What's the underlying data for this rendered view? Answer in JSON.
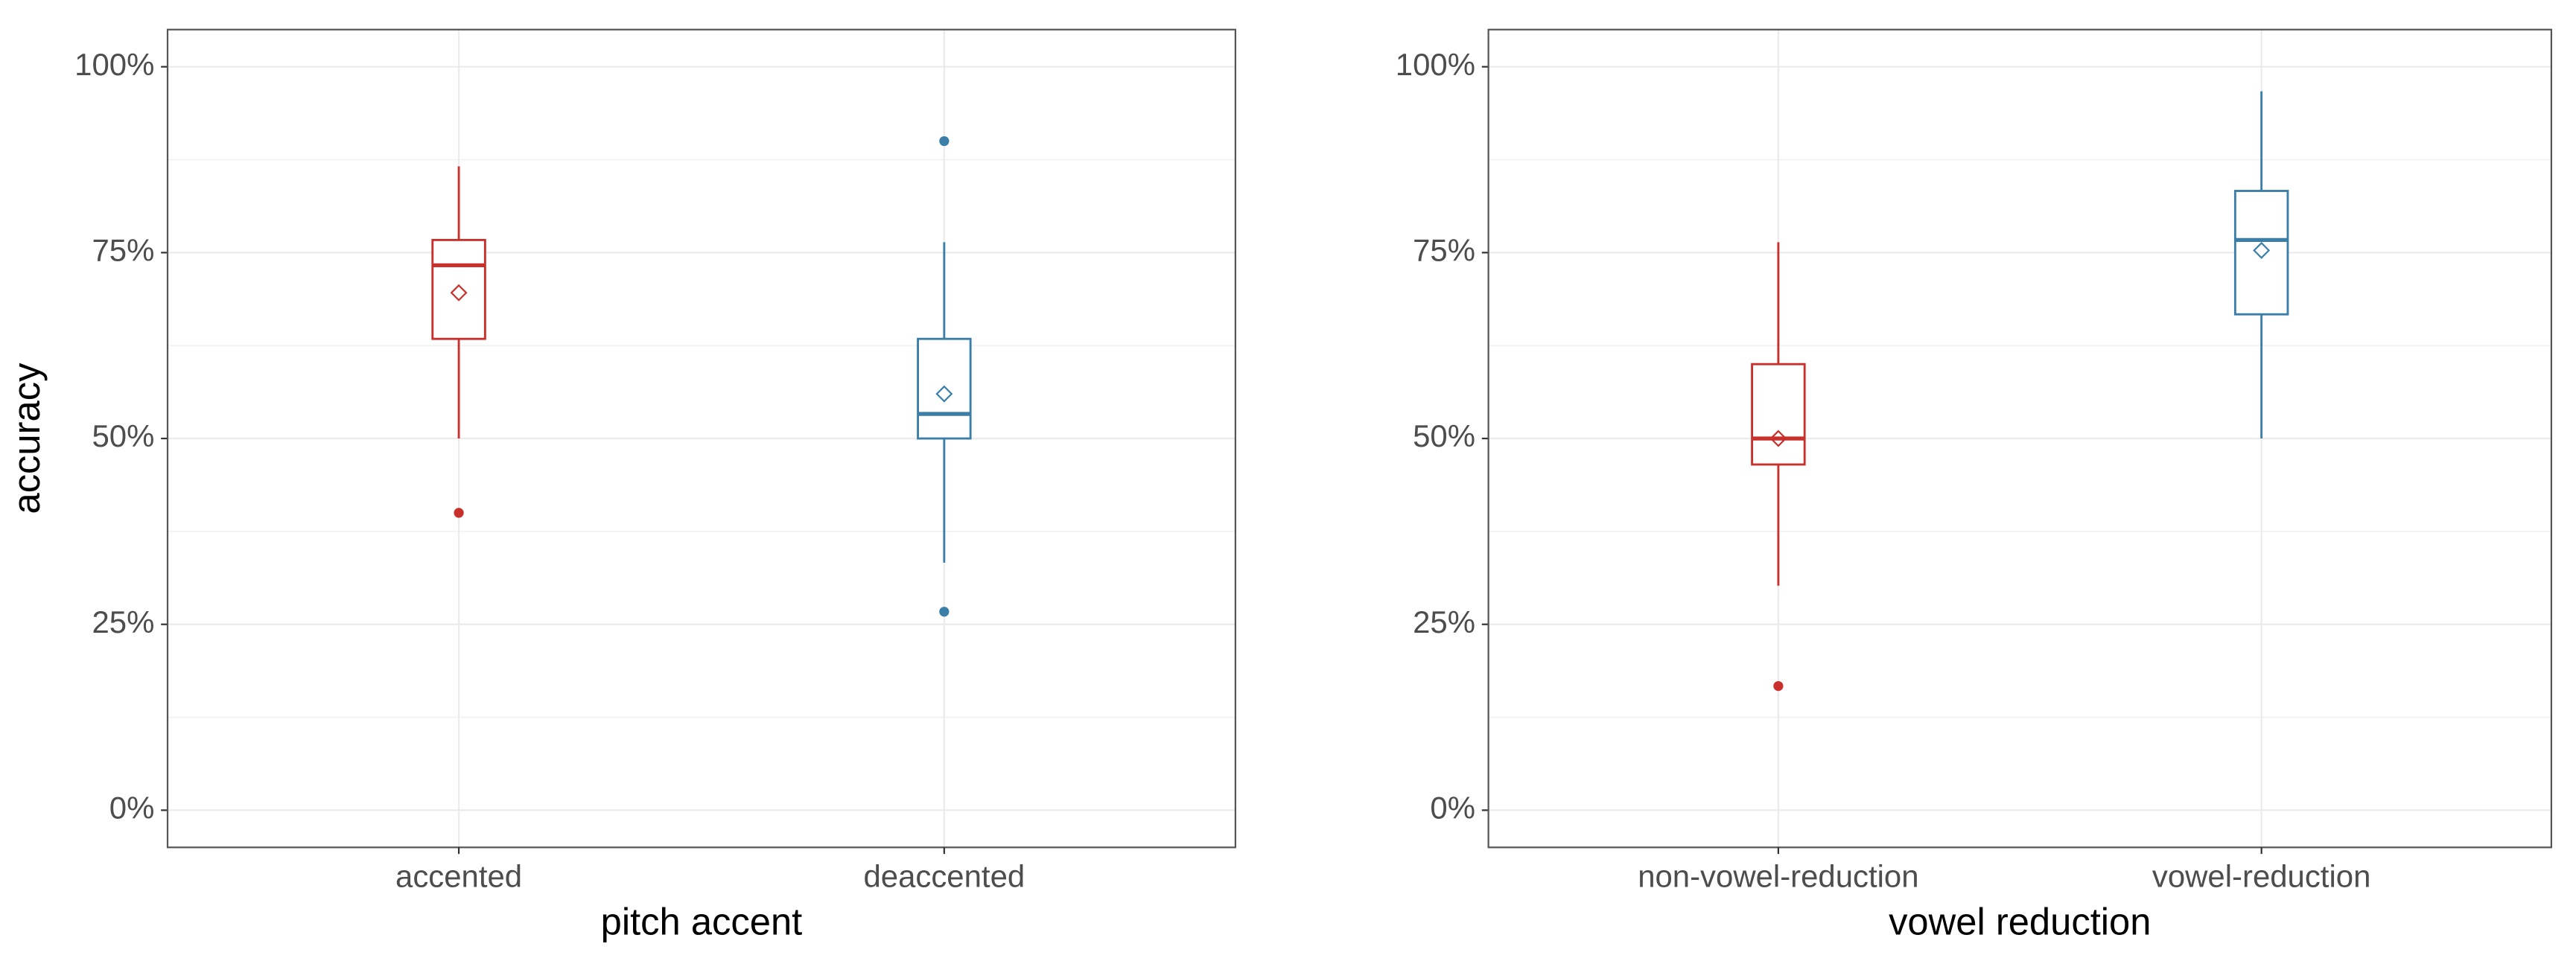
{
  "chart_data": [
    {
      "type": "box",
      "x_label": "pitch accent",
      "y_label": "accuracy",
      "categories": [
        "accented",
        "deaccented"
      ],
      "ylim": [
        -5,
        105
      ],
      "yticks": [
        {
          "value": 0,
          "label": "0%"
        },
        {
          "value": 25,
          "label": "25%"
        },
        {
          "value": 50,
          "label": "50%"
        },
        {
          "value": 75,
          "label": "75%"
        },
        {
          "value": 100,
          "label": "100%"
        }
      ],
      "grid": true,
      "boxes": [
        {
          "color": "#c9302c",
          "whislo": 50,
          "q1": 63.4,
          "med": 73.3,
          "q3": 76.7,
          "whishi": 86.6,
          "mean": 69.6,
          "outliers": [
            40
          ]
        },
        {
          "color": "#3b7ea8",
          "whislo": 33.3,
          "q1": 50,
          "med": 53.3,
          "q3": 63.4,
          "whishi": 76.4,
          "mean": 56,
          "outliers": [
            90,
            26.7
          ]
        }
      ]
    },
    {
      "type": "box",
      "x_label": "vowel reduction",
      "categories": [
        "non-vowel-reduction",
        "vowel-reduction"
      ],
      "ylim": [
        -5,
        105
      ],
      "yticks": [
        {
          "value": 0,
          "label": "0%"
        },
        {
          "value": 25,
          "label": "25%"
        },
        {
          "value": 50,
          "label": "50%"
        },
        {
          "value": 75,
          "label": "75%"
        },
        {
          "value": 100,
          "label": "100%"
        }
      ],
      "grid": true,
      "boxes": [
        {
          "color": "#c9302c",
          "whislo": 30.2,
          "q1": 46.5,
          "med": 50,
          "q3": 60,
          "whishi": 76.4,
          "mean": 50,
          "outliers": [
            16.7
          ]
        },
        {
          "color": "#3b7ea8",
          "whislo": 50,
          "q1": 66.7,
          "med": 76.7,
          "q3": 83.3,
          "whishi": 96.7,
          "mean": 75.3,
          "outliers": []
        }
      ]
    }
  ]
}
